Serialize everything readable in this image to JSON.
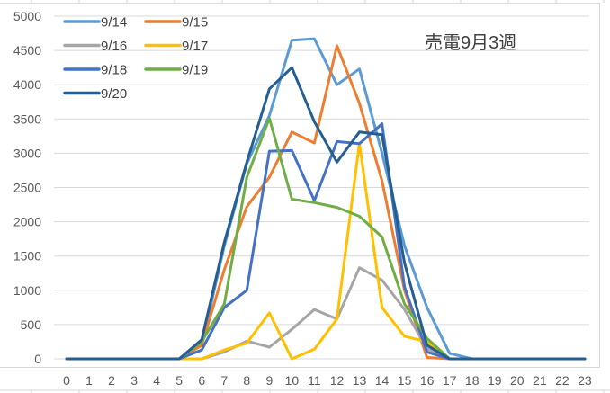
{
  "chart_data": {
    "type": "line",
    "title": "売電9月3週",
    "xlabel": "",
    "ylabel": "",
    "x": [
      0,
      1,
      2,
      3,
      4,
      5,
      6,
      7,
      8,
      9,
      10,
      11,
      12,
      13,
      14,
      15,
      16,
      17,
      18,
      19,
      20,
      21,
      22,
      23
    ],
    "ylim": [
      0,
      5000
    ],
    "yticks": [
      0,
      500,
      1000,
      1500,
      2000,
      2500,
      3000,
      3500,
      4000,
      4500,
      5000
    ],
    "grid": true,
    "legend_position": "top-left (inside plot)",
    "series": [
      {
        "name": "9/14",
        "color": "#5B9BD5",
        "values": [
          0,
          0,
          0,
          0,
          0,
          0,
          200,
          1650,
          2850,
          3550,
          4650,
          4670,
          4000,
          4230,
          3000,
          1650,
          750,
          80,
          0,
          0,
          0,
          0,
          0,
          0
        ]
      },
      {
        "name": "9/15",
        "color": "#ED7D31",
        "values": [
          0,
          0,
          0,
          0,
          0,
          0,
          200,
          1300,
          2220,
          2650,
          3310,
          3150,
          4570,
          3730,
          2600,
          1000,
          20,
          0,
          0,
          0,
          0,
          0,
          0,
          0
        ]
      },
      {
        "name": "9/16",
        "color": "#A5A5A5",
        "values": [
          0,
          0,
          0,
          0,
          0,
          0,
          0,
          100,
          260,
          170,
          430,
          720,
          580,
          1330,
          1150,
          720,
          150,
          0,
          0,
          0,
          0,
          0,
          0,
          0
        ]
      },
      {
        "name": "9/17",
        "color": "#FFC000",
        "values": [
          0,
          0,
          0,
          0,
          0,
          0,
          0,
          130,
          230,
          670,
          0,
          140,
          580,
          3150,
          750,
          330,
          250,
          0,
          0,
          0,
          0,
          0,
          0,
          0
        ]
      },
      {
        "name": "9/18",
        "color": "#4472C4",
        "values": [
          0,
          0,
          0,
          0,
          0,
          0,
          130,
          750,
          1000,
          3030,
          3040,
          2310,
          3170,
          3140,
          3430,
          1050,
          100,
          0,
          0,
          0,
          0,
          0,
          0,
          0
        ]
      },
      {
        "name": "9/19",
        "color": "#70AD47",
        "values": [
          0,
          0,
          0,
          0,
          0,
          0,
          250,
          800,
          2650,
          3510,
          2330,
          2280,
          2210,
          2080,
          1780,
          800,
          300,
          0,
          0,
          0,
          0,
          0,
          0,
          0
        ]
      },
      {
        "name": "9/20",
        "color": "#255E91",
        "values": [
          0,
          0,
          0,
          0,
          0,
          0,
          280,
          1700,
          2870,
          3940,
          4250,
          3460,
          2870,
          3310,
          3270,
          1400,
          200,
          0,
          0,
          0,
          0,
          0,
          0,
          0
        ]
      }
    ]
  }
}
